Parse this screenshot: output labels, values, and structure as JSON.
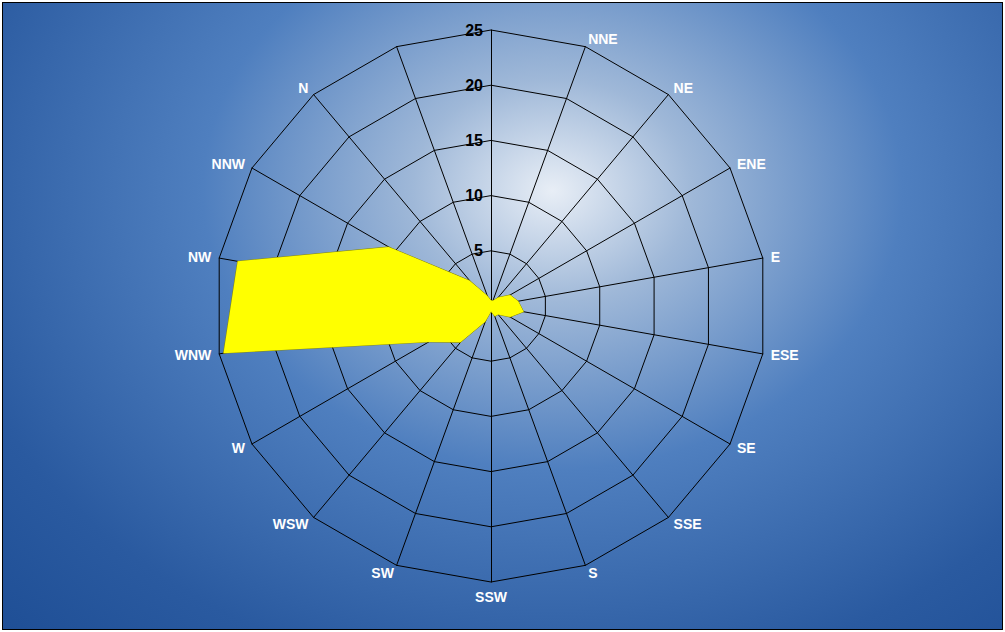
{
  "chart_data": {
    "type": "radar",
    "categories": [
      null,
      "NNE",
      "NE",
      "ENE",
      "E",
      "ESE",
      "SE",
      "SSE",
      "S",
      "SSW",
      "SW",
      "WSW",
      "W",
      "WNW",
      "NW",
      "NNW",
      "N",
      null
    ],
    "values": [
      0.5,
      0.5,
      1,
      2,
      2.5,
      3,
      2,
      1,
      1,
      0.5,
      1.5,
      4.3,
      6.5,
      24.6,
      23.3,
      10.7,
      3,
      1
    ],
    "color": "#ffff00",
    "ylim": [
      0,
      25
    ],
    "yticks": [
      0,
      5,
      10,
      15,
      20,
      25
    ],
    "grid": true
  }
}
